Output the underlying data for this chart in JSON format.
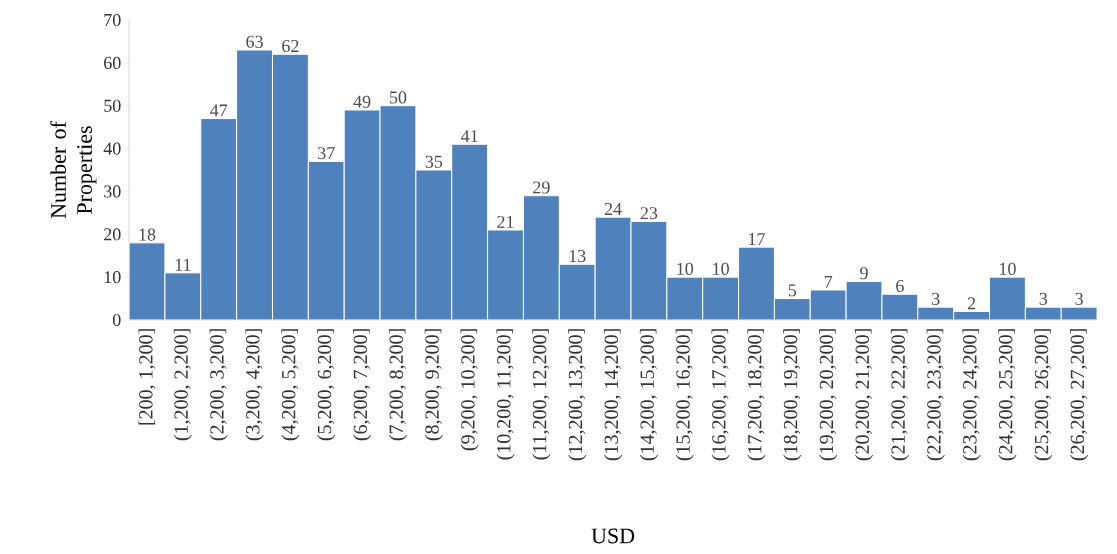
{
  "chart_data": {
    "type": "bar",
    "xlabel": "USD",
    "ylabel": "Number of Properties",
    "categories": [
      "[200, 1,200]",
      "(1,200, 2,200]",
      "(2,200, 3,200]",
      "(3,200, 4,200]",
      "(4,200, 5,200]",
      "(5,200, 6,200]",
      "(6,200, 7,200]",
      "(7,200, 8,200]",
      "(8,200, 9,200]",
      "(9,200, 10,200]",
      "(10,200, 11,200]",
      "(11,200, 12,200]",
      "(12,200, 13,200]",
      "(13,200, 14,200]",
      "(14,200, 15,200]",
      "(15,200, 16,200]",
      "(16,200, 17,200]",
      "(17,200, 18,200]",
      "(18,200, 19,200]",
      "(19,200, 20,200]",
      "(20,200, 21,200]",
      "(21,200, 22,200]",
      "(22,200, 23,200]",
      "(23,200, 24,200]",
      "(24,200, 25,200]",
      "(25,200, 26,200]",
      "(26,200, 27,200]"
    ],
    "values": [
      18,
      11,
      47,
      63,
      62,
      37,
      49,
      50,
      35,
      41,
      21,
      29,
      13,
      24,
      23,
      10,
      10,
      17,
      5,
      7,
      9,
      6,
      3,
      2,
      10,
      3,
      3
    ],
    "color": "#4f81bd",
    "data_labels": true,
    "ylim": [
      0,
      70
    ],
    "yticks": [
      0,
      10,
      20,
      30,
      40,
      50,
      60,
      70
    ],
    "grid": false
  }
}
